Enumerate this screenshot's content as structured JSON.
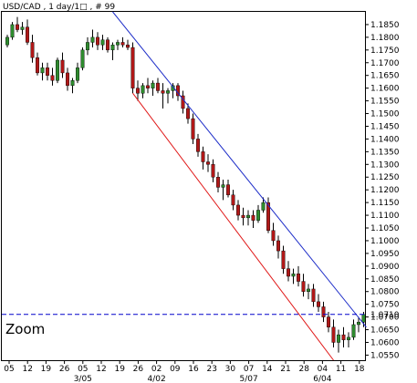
{
  "chart_data": {
    "type": "candlestick",
    "title": "USD/CAD , 1 day/1□ , # 99",
    "zoom_label": "Zoom",
    "ylim": [
      1.053,
      1.19
    ],
    "y_ticks": [
      "1.1850",
      "1.1800",
      "1.1750",
      "1.1700",
      "1.1650",
      "1.1600",
      "1.1550",
      "1.1500",
      "1.1450",
      "1.1400",
      "1.1350",
      "1.1300",
      "1.1250",
      "1.1200",
      "1.1150",
      "1.1100",
      "1.1050",
      "1.1000",
      "1.0950",
      "1.0900",
      "1.0850",
      "1.0800",
      "1.0750",
      "1.0700",
      "1.0650",
      "1.0600",
      "1.0550"
    ],
    "x_tick_labels": [
      "05",
      "12",
      "19",
      "26",
      "05",
      "12",
      "19",
      "26",
      "02",
      "09",
      "16",
      "23",
      "30",
      "07",
      "14",
      "21",
      "28",
      "04",
      "11",
      "18"
    ],
    "month_labels": [
      {
        "label": "3/05",
        "tick_index": 4
      },
      {
        "label": "4/02",
        "tick_index": 8
      },
      {
        "label": "5/07",
        "tick_index": 13
      },
      {
        "label": "6/04",
        "tick_index": 17
      }
    ],
    "last_price": "1.0710",
    "last_price_value": 1.071,
    "colors": {
      "up": "#2e8b2e",
      "down": "#b01818",
      "wick": "#000000",
      "upper_channel": "#1c2cc8",
      "lower_channel": "#e01818",
      "price_line": "#0000cc",
      "badge_bg": "#ffffff"
    },
    "candles": [
      [
        1.177,
        1.181,
        1.176,
        1.18
      ],
      [
        1.18,
        1.186,
        1.179,
        1.185
      ],
      [
        1.185,
        1.188,
        1.182,
        1.183
      ],
      [
        1.183,
        1.186,
        1.181,
        1.184
      ],
      [
        1.184,
        1.187,
        1.177,
        1.178
      ],
      [
        1.178,
        1.181,
        1.17,
        1.172
      ],
      [
        1.172,
        1.174,
        1.165,
        1.166
      ],
      [
        1.166,
        1.17,
        1.163,
        1.168
      ],
      [
        1.168,
        1.17,
        1.163,
        1.165
      ],
      [
        1.165,
        1.168,
        1.161,
        1.163
      ],
      [
        1.163,
        1.172,
        1.162,
        1.171
      ],
      [
        1.171,
        1.174,
        1.164,
        1.166
      ],
      [
        1.166,
        1.168,
        1.159,
        1.161
      ],
      [
        1.161,
        1.164,
        1.158,
        1.163
      ],
      [
        1.163,
        1.17,
        1.162,
        1.168
      ],
      [
        1.168,
        1.176,
        1.167,
        1.175
      ],
      [
        1.175,
        1.18,
        1.173,
        1.178
      ],
      [
        1.178,
        1.183,
        1.176,
        1.18
      ],
      [
        1.18,
        1.182,
        1.175,
        1.177
      ],
      [
        1.177,
        1.181,
        1.175,
        1.179
      ],
      [
        1.179,
        1.18,
        1.174,
        1.175
      ],
      [
        1.175,
        1.178,
        1.171,
        1.177
      ],
      [
        1.177,
        1.179,
        1.175,
        1.178
      ],
      [
        1.178,
        1.18,
        1.176,
        1.177
      ],
      [
        1.177,
        1.179,
        1.175,
        1.176
      ],
      [
        1.176,
        1.178,
        1.158,
        1.16
      ],
      [
        1.16,
        1.163,
        1.155,
        1.158
      ],
      [
        1.158,
        1.162,
        1.156,
        1.161
      ],
      [
        1.161,
        1.164,
        1.158,
        1.16
      ],
      [
        1.16,
        1.163,
        1.157,
        1.162
      ],
      [
        1.162,
        1.164,
        1.158,
        1.159
      ],
      [
        1.159,
        1.162,
        1.152,
        1.158
      ],
      [
        1.158,
        1.16,
        1.154,
        1.159
      ],
      [
        1.159,
        1.162,
        1.156,
        1.161
      ],
      [
        1.161,
        1.162,
        1.155,
        1.157
      ],
      [
        1.157,
        1.159,
        1.15,
        1.152
      ],
      [
        1.152,
        1.154,
        1.146,
        1.148
      ],
      [
        1.148,
        1.15,
        1.138,
        1.14
      ],
      [
        1.14,
        1.142,
        1.133,
        1.135
      ],
      [
        1.135,
        1.137,
        1.128,
        1.131
      ],
      [
        1.131,
        1.134,
        1.127,
        1.13
      ],
      [
        1.13,
        1.132,
        1.123,
        1.125
      ],
      [
        1.125,
        1.127,
        1.119,
        1.121
      ],
      [
        1.121,
        1.124,
        1.116,
        1.122
      ],
      [
        1.122,
        1.124,
        1.117,
        1.118
      ],
      [
        1.118,
        1.12,
        1.112,
        1.114
      ],
      [
        1.114,
        1.116,
        1.108,
        1.11
      ],
      [
        1.11,
        1.113,
        1.106,
        1.109
      ],
      [
        1.109,
        1.112,
        1.106,
        1.11
      ],
      [
        1.11,
        1.112,
        1.105,
        1.108
      ],
      [
        1.108,
        1.114,
        1.107,
        1.112
      ],
      [
        1.112,
        1.117,
        1.111,
        1.115
      ],
      [
        1.115,
        1.117,
        1.103,
        1.104
      ],
      [
        1.104,
        1.107,
        1.098,
        1.1
      ],
      [
        1.1,
        1.102,
        1.093,
        1.096
      ],
      [
        1.096,
        1.098,
        1.087,
        1.089
      ],
      [
        1.089,
        1.092,
        1.084,
        1.086
      ],
      [
        1.086,
        1.089,
        1.083,
        1.087
      ],
      [
        1.087,
        1.09,
        1.082,
        1.084
      ],
      [
        1.084,
        1.087,
        1.078,
        1.08
      ],
      [
        1.08,
        1.083,
        1.077,
        1.081
      ],
      [
        1.081,
        1.083,
        1.074,
        1.076
      ],
      [
        1.076,
        1.079,
        1.072,
        1.074
      ],
      [
        1.074,
        1.076,
        1.068,
        1.07
      ],
      [
        1.07,
        1.072,
        1.064,
        1.066
      ],
      [
        1.066,
        1.069,
        1.058,
        1.06
      ],
      [
        1.06,
        1.065,
        1.056,
        1.063
      ],
      [
        1.063,
        1.066,
        1.058,
        1.061
      ],
      [
        1.061,
        1.064,
        1.058,
        1.062
      ],
      [
        1.062,
        1.069,
        1.061,
        1.067
      ],
      [
        1.067,
        1.07,
        1.064,
        1.068
      ],
      [
        1.068,
        1.072,
        1.066,
        1.071
      ]
    ]
  }
}
